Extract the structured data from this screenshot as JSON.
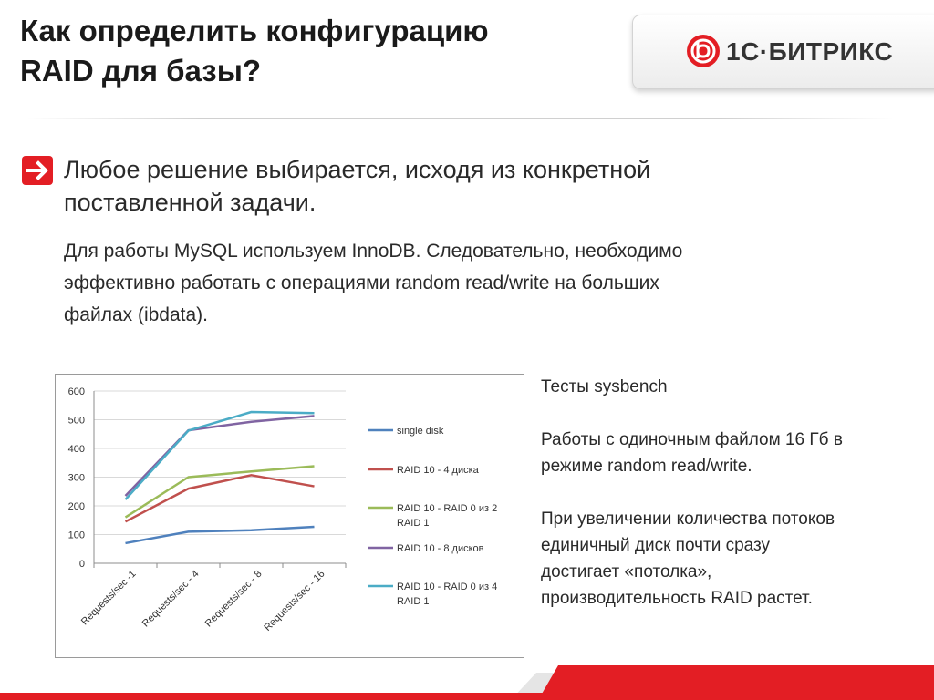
{
  "title": {
    "line1": "Как определить конфигурацию",
    "line2": "RAID для базы?"
  },
  "logo": {
    "text": "1С·БИТРИКС",
    "icon": "bitrix-logo-icon",
    "brand_color": "#e31e24"
  },
  "bullet": {
    "icon": "arrow-right-icon",
    "line1": "Любое решение выбирается, исходя из конкретной",
    "line2": "поставленной задачи."
  },
  "body": {
    "line1": "Для работы MySQL используем InnoDB. Следовательно, необходимо",
    "line2": "эффективно работать с операциями random read/write на больших",
    "line3": "файлах (ibdata)."
  },
  "side": {
    "p1": "Тесты sysbench",
    "p2_line1": "Работы с одиночным файлом 16 Гб в",
    "p2_line2": "режиме random read/write.",
    "p3_line1": "При увеличении количества потоков",
    "p3_line2": "единичный диск почти сразу",
    "p3_line3": "достигает «потолка»,",
    "p3_line4": "производительность RAID растет."
  },
  "chart_data": {
    "type": "line",
    "categories": [
      "Requests/sec -1",
      "Requests/sec - 4",
      "Requests/sec - 8",
      "Requests/sec - 16"
    ],
    "ylim": [
      0,
      600
    ],
    "yticks": [
      0,
      100,
      200,
      300,
      400,
      500,
      600
    ],
    "grid": true,
    "legend_position": "right",
    "series": [
      {
        "name": "single disk",
        "color": "#4f81bd",
        "values": [
          70,
          110,
          115,
          127
        ]
      },
      {
        "name": "RAID 10 - 4 диска",
        "color": "#c0504d",
        "values": [
          145,
          260,
          307,
          268
        ]
      },
      {
        "name": "RAID 10 - RAID 0 из 2 RAID 1",
        "color": "#9bbb59",
        "values": [
          160,
          300,
          320,
          338
        ]
      },
      {
        "name": "RAID 10 - 8 дисков",
        "color": "#8064a2",
        "values": [
          235,
          463,
          493,
          513
        ]
      },
      {
        "name": "RAID 10 - RAID 0 из 4 RAID 1",
        "color": "#4bacc6",
        "values": [
          222,
          462,
          527,
          523
        ]
      }
    ]
  }
}
